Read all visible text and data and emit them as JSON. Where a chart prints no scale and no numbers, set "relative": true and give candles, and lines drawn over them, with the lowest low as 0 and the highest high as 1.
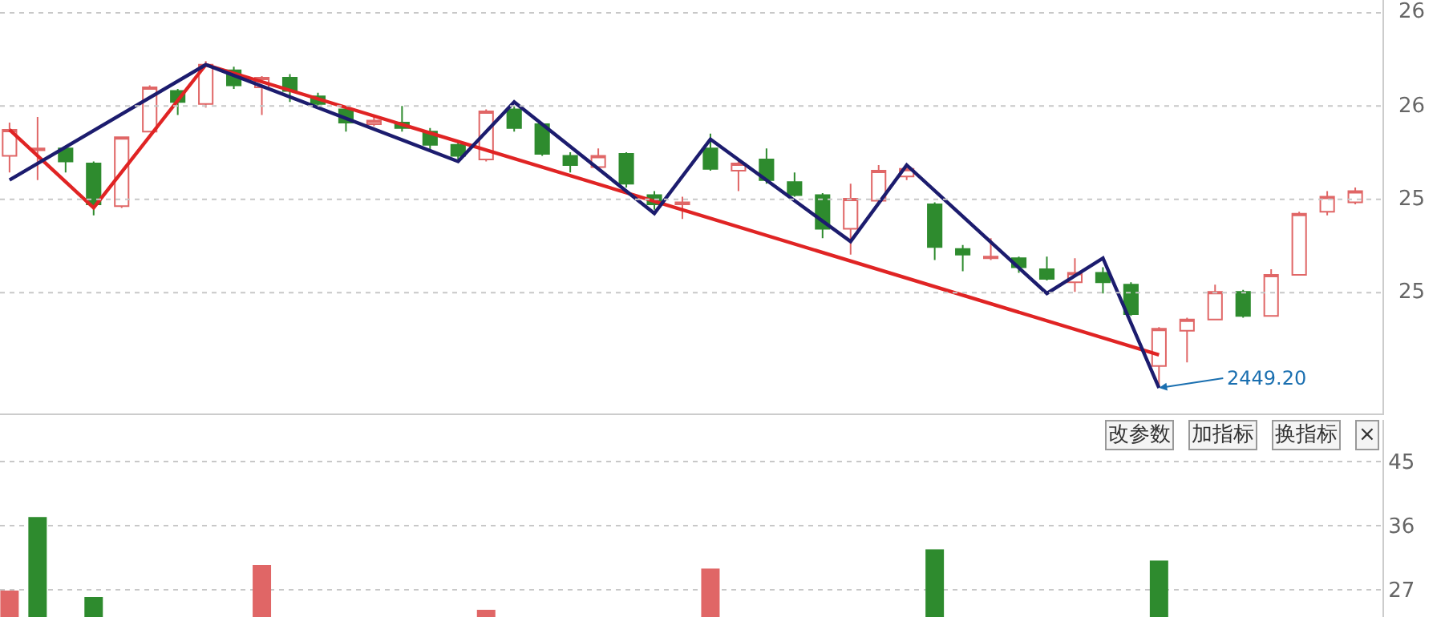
{
  "chart_data": [
    {
      "type": "candlestick",
      "relative": true,
      "categories": [
        null,
        null,
        null,
        null,
        null,
        null,
        null,
        null,
        null,
        null,
        null,
        null,
        null,
        null,
        null,
        null,
        null,
        null,
        null,
        null,
        null,
        null,
        null,
        null,
        null,
        null,
        null,
        null,
        null,
        null,
        null,
        null,
        null,
        null,
        null,
        null,
        null,
        null,
        null,
        null,
        null,
        null,
        null,
        null,
        null,
        null,
        null,
        null,
        null
      ],
      "ohlc": [
        [
          0.71,
          0.812,
          0.659,
          0.79
        ],
        [
          0.727,
          0.829,
          0.636,
          0.733
        ],
        [
          0.733,
          0.738,
          0.659,
          0.693
        ],
        [
          0.687,
          0.693,
          0.528,
          0.562
        ],
        [
          0.556,
          0.767,
          0.551,
          0.767
        ],
        [
          0.784,
          0.926,
          0.784,
          0.92
        ],
        [
          0.909,
          0.915,
          0.835,
          0.875
        ],
        [
          0.869,
          1,
          0.858,
          0.989
        ],
        [
          0.972,
          0.983,
          0.915,
          0.926
        ],
        [
          0.92,
          0.954,
          0.835,
          0.949
        ],
        [
          0.949,
          0.96,
          0.875,
          0.909
        ],
        [
          0.892,
          0.903,
          0.858,
          0.869
        ],
        [
          0.852,
          0.863,
          0.784,
          0.812
        ],
        [
          0.807,
          0.829,
          0.801,
          0.818
        ],
        [
          0.812,
          0.863,
          0.784,
          0.795
        ],
        [
          0.784,
          0.795,
          0.727,
          0.744
        ],
        [
          0.744,
          0.755,
          0.699,
          0.71
        ],
        [
          0.699,
          0.852,
          0.693,
          0.846
        ],
        [
          0.852,
          0.863,
          0.784,
          0.795
        ],
        [
          0.807,
          0.812,
          0.71,
          0.716
        ],
        [
          0.71,
          0.721,
          0.659,
          0.682
        ],
        [
          0.676,
          0.733,
          0.67,
          0.71
        ],
        [
          0.716,
          0.721,
          0.613,
          0.625
        ],
        [
          0.59,
          0.602,
          0.545,
          0.562
        ],
        [
          0.562,
          0.585,
          0.517,
          0.568
        ],
        [
          0.733,
          0.778,
          0.665,
          0.67
        ],
        [
          0.665,
          0.699,
          0.602,
          0.687
        ],
        [
          0.699,
          0.733,
          0.625,
          0.636
        ],
        [
          0.63,
          0.659,
          0.585,
          0.59
        ],
        [
          0.59,
          0.596,
          0.458,
          0.487
        ],
        [
          0.487,
          0.625,
          0.408,
          0.579
        ],
        [
          0.573,
          0.682,
          0.568,
          0.665
        ],
        [
          0.647,
          0.682,
          0.636,
          0.67
        ],
        [
          0.562,
          0.568,
          0.391,
          0.431
        ],
        [
          0.425,
          0.437,
          0.357,
          0.408
        ],
        [
          0.397,
          0.458,
          0.391,
          0.402
        ],
        [
          0.397,
          0.402,
          0.352,
          0.369
        ],
        [
          0.363,
          0.402,
          0.329,
          0.334
        ],
        [
          0.323,
          0.397,
          0.294,
          0.352
        ],
        [
          0.352,
          0.369,
          0.289,
          0.323
        ],
        [
          0.316,
          0.323,
          0.22,
          0.226
        ],
        [
          0.067,
          0.186,
          0,
          0.181
        ],
        [
          0.175,
          0.215,
          0.078,
          0.209
        ],
        [
          0.209,
          0.316,
          0.209,
          0.294
        ],
        [
          0.294,
          0.3,
          0.215,
          0.22
        ],
        [
          0.22,
          0.363,
          0.22,
          0.346
        ],
        [
          0.346,
          0.539,
          0.346,
          0.533
        ],
        [
          0.539,
          0.602,
          0.528,
          0.585
        ],
        [
          0.568,
          0.613,
          0.562,
          0.602
        ]
      ],
      "colors": [
        "#e06666",
        "#e06666",
        "#2e8b2e",
        "#2e8b2e",
        "#e06666",
        "#e06666",
        "#2e8b2e",
        "#e06666",
        "#2e8b2e",
        "#e06666",
        "#2e8b2e",
        "#2e8b2e",
        "#2e8b2e",
        "#e06666",
        "#2e8b2e",
        "#2e8b2e",
        "#2e8b2e",
        "#e06666",
        "#2e8b2e",
        "#2e8b2e",
        "#2e8b2e",
        "#e06666",
        "#2e8b2e",
        "#2e8b2e",
        "#e06666",
        "#2e8b2e",
        "#e06666",
        "#2e8b2e",
        "#2e8b2e",
        "#2e8b2e",
        "#e06666",
        "#e06666",
        "#e06666",
        "#2e8b2e",
        "#2e8b2e",
        "#e06666",
        "#2e8b2e",
        "#2e8b2e",
        "#e06666",
        "#2e8b2e",
        "#2e8b2e",
        "#e06666",
        "#e06666",
        "#e06666",
        "#2e8b2e",
        "#e06666",
        "#e06666",
        "#e06666",
        "#e06666"
      ],
      "series": [
        {
          "type": "line",
          "color": "#e02424",
          "values": [
            0.79,
            null,
            null,
            0.551,
            null,
            null,
            null,
            0.989,
            null,
            null,
            null,
            null,
            null,
            null,
            null,
            null,
            null,
            null,
            null,
            null,
            null,
            null,
            null,
            null,
            null,
            null,
            null,
            null,
            null,
            null,
            null,
            null,
            null,
            null,
            null,
            null,
            null,
            null,
            null,
            null,
            null,
            0.101,
            null,
            null,
            null,
            null,
            null,
            null,
            null
          ]
        },
        {
          "type": "line",
          "color": "#1c1c6e",
          "values": [
            0.636,
            null,
            null,
            null,
            null,
            null,
            null,
            0.989,
            null,
            null,
            null,
            null,
            null,
            null,
            null,
            null,
            0.693,
            null,
            0.875,
            null,
            null,
            null,
            null,
            0.534,
            null,
            0.761,
            null,
            null,
            null,
            null,
            0.448,
            null,
            0.682,
            null,
            null,
            null,
            null,
            0.289,
            null,
            0.397,
            null,
            0,
            null,
            null,
            null,
            null,
            null,
            null,
            null
          ]
        }
      ],
      "annotations": [
        "2449.20",
        "26",
        "26",
        "25",
        "25"
      ],
      "grid": "y",
      "marker": "none",
      "line_style": "solid",
      "tick_labels": false
    },
    {
      "type": "bar",
      "categories": [
        null,
        null,
        null,
        null,
        null,
        null,
        null,
        null,
        null,
        null,
        null,
        null,
        null,
        null,
        null,
        null,
        null,
        null,
        null,
        null,
        null,
        null,
        null,
        null,
        null,
        null,
        null,
        null,
        null,
        null,
        null,
        null,
        null,
        null,
        null,
        null,
        null,
        null,
        null,
        null,
        null,
        null,
        null,
        null,
        null,
        null,
        null,
        null,
        null
      ],
      "values": [
        26.8,
        37.1,
        null,
        25.9,
        null,
        null,
        null,
        null,
        null,
        30.4,
        null,
        null,
        null,
        null,
        null,
        null,
        null,
        24.1,
        null,
        null,
        null,
        null,
        null,
        null,
        null,
        29.9,
        null,
        null,
        null,
        null,
        null,
        null,
        null,
        32.6,
        null,
        null,
        null,
        null,
        null,
        null,
        null,
        31.0,
        null,
        null,
        null,
        null,
        null,
        null,
        null
      ],
      "colors": [
        "#e06666",
        "#2e8b2e",
        null,
        "#2e8b2e",
        null,
        null,
        null,
        null,
        null,
        "#e06666",
        null,
        null,
        null,
        null,
        null,
        null,
        null,
        "#e06666",
        null,
        null,
        null,
        null,
        null,
        null,
        null,
        "#e06666",
        null,
        null,
        null,
        null,
        null,
        null,
        null,
        "#2e8b2e",
        null,
        null,
        null,
        null,
        null,
        null,
        null,
        "#2e8b2e",
        null,
        null,
        null,
        null,
        null,
        null,
        null
      ],
      "ylim": [
        23.2,
        50.9
      ],
      "yticks": [
        45,
        36,
        27
      ],
      "annotations": [
        "改参数",
        "加指标",
        "换指标",
        "×"
      ],
      "grid": "y",
      "tick_labels": "y"
    }
  ]
}
